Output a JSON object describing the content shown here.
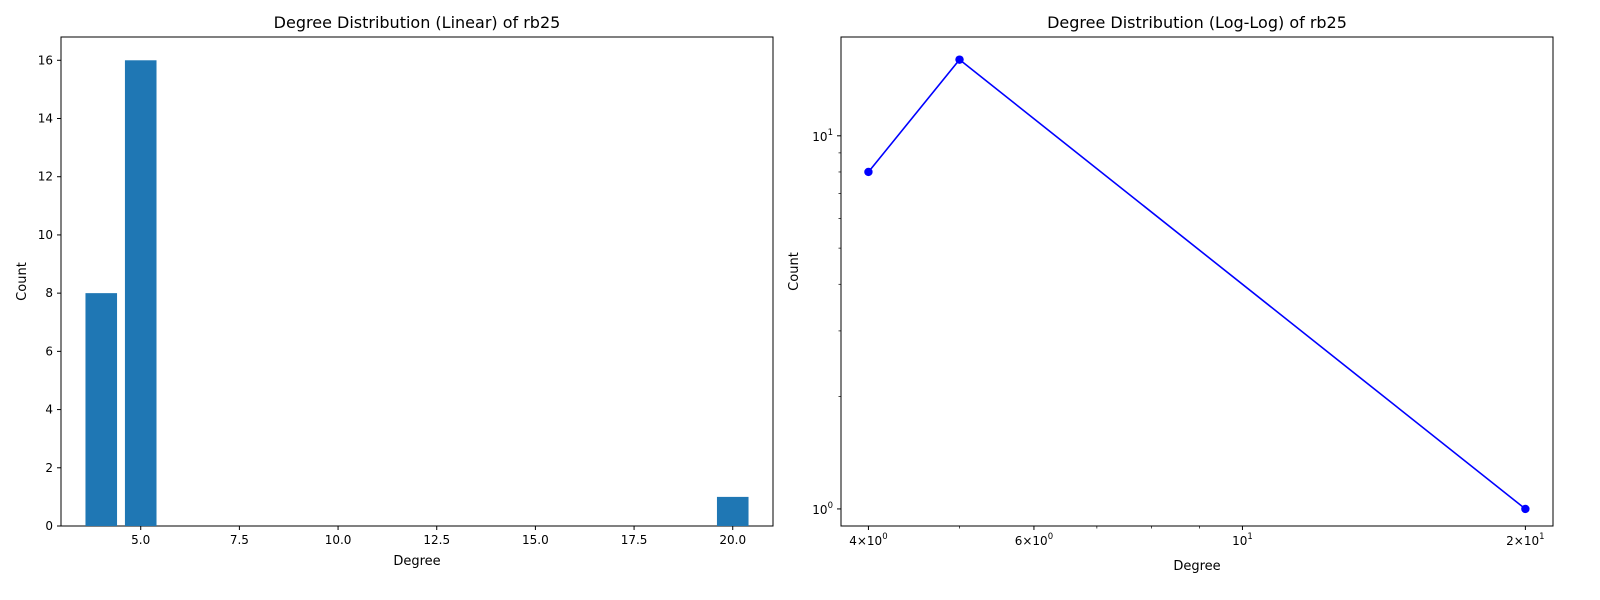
{
  "chart_data": [
    {
      "type": "bar",
      "title": "Degree Distribution (Linear) of rb25",
      "xlabel": "Degree",
      "ylabel": "Count",
      "x": [
        4,
        5,
        20
      ],
      "values": [
        8,
        16,
        1
      ],
      "color": "#1f77b4",
      "xlim": [
        2.98,
        21.02
      ],
      "ylim": [
        0,
        16.8
      ],
      "xticks": [
        5.0,
        7.5,
        10.0,
        12.5,
        15.0,
        17.5,
        20.0
      ],
      "xtick_labels": [
        "5.0",
        "7.5",
        "10.0",
        "12.5",
        "15.0",
        "17.5",
        "20.0"
      ],
      "yticks": [
        0,
        2,
        4,
        6,
        8,
        10,
        12,
        14,
        16
      ],
      "ytick_labels": [
        "0",
        "2",
        "4",
        "6",
        "8",
        "10",
        "12",
        "14",
        "16"
      ],
      "grid": false,
      "legend": "none"
    },
    {
      "type": "line",
      "title": "Degree Distribution (Log-Log) of rb25",
      "xlabel": "Degree",
      "ylabel": "Count",
      "x": [
        4,
        5,
        20
      ],
      "y": [
        8,
        16,
        1
      ],
      "color": "#0000ff",
      "marker": "circle",
      "xscale": "log",
      "yscale": "log",
      "xlim": [
        3.74,
        21.4
      ],
      "ylim": [
        0.9,
        18.4
      ],
      "xticks": [
        4,
        6,
        10,
        20
      ],
      "xtick_labels": [
        {
          "base": "4×10",
          "exp": "0"
        },
        {
          "base": "6×10",
          "exp": "0"
        },
        {
          "base": "10",
          "exp": "1"
        },
        {
          "base": "2×10",
          "exp": "1"
        }
      ],
      "yticks": [
        1,
        10
      ],
      "ytick_labels": [
        {
          "base": "10",
          "exp": "0"
        },
        {
          "base": "10",
          "exp": "1"
        }
      ],
      "grid": false,
      "legend": "none"
    }
  ]
}
